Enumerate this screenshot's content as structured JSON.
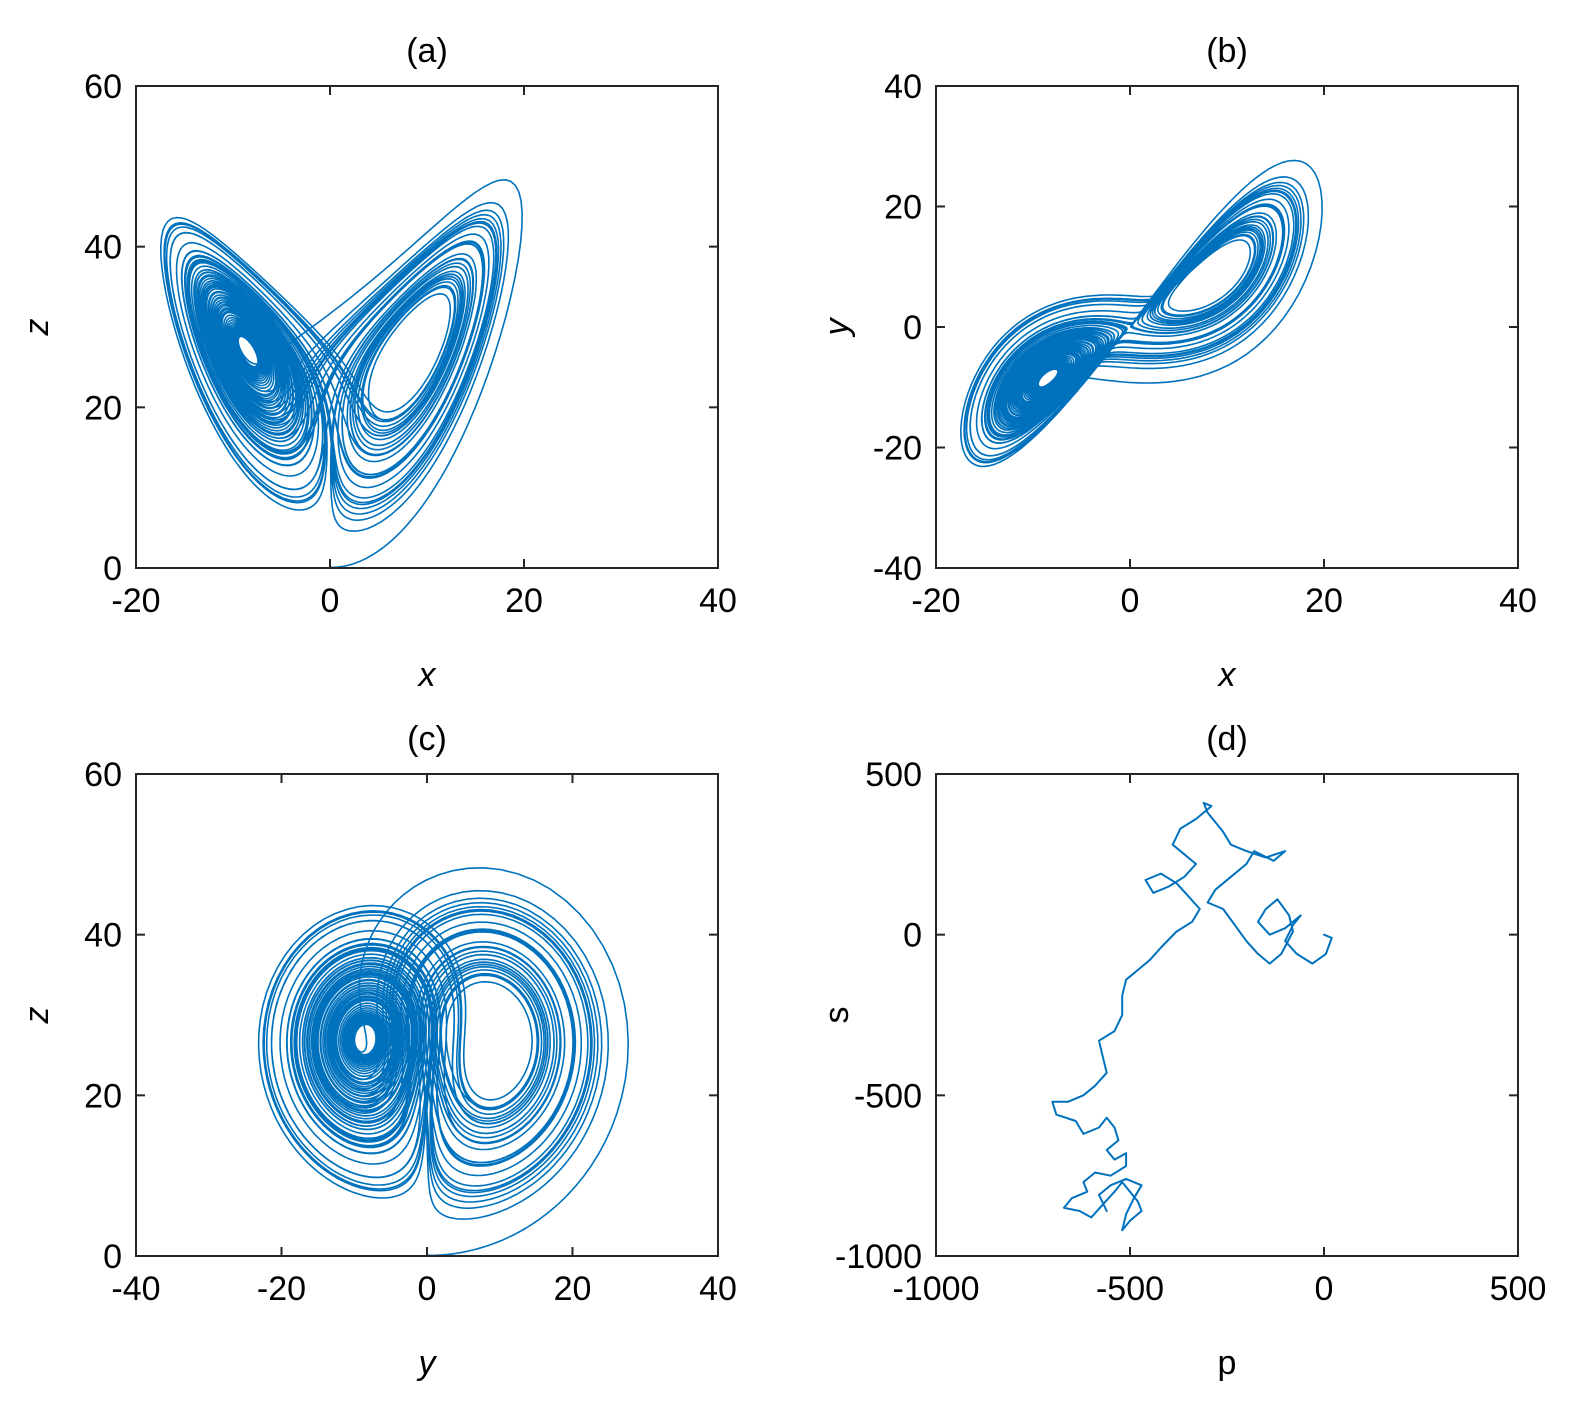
{
  "figure": {
    "background": "#ffffff",
    "line_color": "#0072bd"
  },
  "chart_data": [
    {
      "id": "a",
      "type": "line",
      "title": "(a)",
      "xlabel": "x",
      "ylabel": "z",
      "italic_labels": true,
      "xlim": [
        -20,
        40
      ],
      "ylim": [
        0,
        60
      ],
      "xticks": [
        -20,
        0,
        20,
        40
      ],
      "yticks": [
        0,
        20,
        40,
        60
      ],
      "grid": false,
      "series": [
        {
          "source": "lorenz",
          "x": "x",
          "y": "z"
        }
      ]
    },
    {
      "id": "b",
      "type": "line",
      "title": "(b)",
      "xlabel": "x",
      "ylabel": "y",
      "italic_labels": true,
      "xlim": [
        -20,
        40
      ],
      "ylim": [
        -40,
        40
      ],
      "xticks": [
        -20,
        0,
        20,
        40
      ],
      "yticks": [
        -40,
        -20,
        0,
        20,
        40
      ],
      "grid": false,
      "series": [
        {
          "source": "lorenz",
          "x": "x",
          "y": "y"
        }
      ]
    },
    {
      "id": "c",
      "type": "line",
      "title": "(c)",
      "xlabel": "y",
      "ylabel": "z",
      "italic_labels": true,
      "xlim": [
        -40,
        40
      ],
      "ylim": [
        0,
        60
      ],
      "xticks": [
        -40,
        -20,
        0,
        20,
        40
      ],
      "yticks": [
        0,
        20,
        40,
        60
      ],
      "grid": false,
      "series": [
        {
          "source": "lorenz",
          "x": "y",
          "y": "z"
        }
      ]
    },
    {
      "id": "d",
      "type": "line",
      "title": "(d)",
      "xlabel": "p",
      "ylabel": "s",
      "italic_labels": false,
      "xlim": [
        -1000,
        500
      ],
      "ylim": [
        -1000,
        500
      ],
      "xticks": [
        -1000,
        -500,
        0,
        500
      ],
      "yticks": [
        -1000,
        -500,
        0,
        500
      ],
      "grid": false,
      "series": [
        {
          "source": "points",
          "points": [
            [
              0,
              0
            ],
            [
              20,
              -10
            ],
            [
              5,
              -60
            ],
            [
              -30,
              -90
            ],
            [
              -70,
              -60
            ],
            [
              -100,
              -20
            ],
            [
              -80,
              30
            ],
            [
              -60,
              60
            ],
            [
              -100,
              20
            ],
            [
              -140,
              0
            ],
            [
              -170,
              40
            ],
            [
              -150,
              80
            ],
            [
              -120,
              110
            ],
            [
              -90,
              60
            ],
            [
              -80,
              10
            ],
            [
              -110,
              -60
            ],
            [
              -140,
              -90
            ],
            [
              -170,
              -60
            ],
            [
              -200,
              -20
            ],
            [
              -230,
              30
            ],
            [
              -260,
              80
            ],
            [
              -300,
              100
            ],
            [
              -280,
              140
            ],
            [
              -240,
              180
            ],
            [
              -200,
              220
            ],
            [
              -180,
              260
            ],
            [
              -130,
              230
            ],
            [
              -100,
              260
            ],
            [
              -150,
              240
            ],
            [
              -200,
              260
            ],
            [
              -240,
              280
            ],
            [
              -260,
              320
            ],
            [
              -300,
              380
            ],
            [
              -310,
              410
            ],
            [
              -290,
              400
            ],
            [
              -330,
              360
            ],
            [
              -370,
              330
            ],
            [
              -390,
              280
            ],
            [
              -360,
              250
            ],
            [
              -330,
              220
            ],
            [
              -360,
              180
            ],
            [
              -400,
              150
            ],
            [
              -440,
              130
            ],
            [
              -460,
              170
            ],
            [
              -420,
              190
            ],
            [
              -380,
              160
            ],
            [
              -350,
              120
            ],
            [
              -320,
              80
            ],
            [
              -340,
              40
            ],
            [
              -380,
              10
            ],
            [
              -420,
              -40
            ],
            [
              -450,
              -80
            ],
            [
              -480,
              -110
            ],
            [
              -510,
              -140
            ],
            [
              -520,
              -190
            ],
            [
              -520,
              -250
            ],
            [
              -540,
              -300
            ],
            [
              -580,
              -330
            ],
            [
              -570,
              -380
            ],
            [
              -560,
              -430
            ],
            [
              -590,
              -470
            ],
            [
              -620,
              -500
            ],
            [
              -660,
              -520
            ],
            [
              -700,
              -520
            ],
            [
              -690,
              -560
            ],
            [
              -640,
              -580
            ],
            [
              -620,
              -620
            ],
            [
              -580,
              -600
            ],
            [
              -560,
              -570
            ],
            [
              -540,
              -600
            ],
            [
              -530,
              -640
            ],
            [
              -560,
              -670
            ],
            [
              -540,
              -700
            ],
            [
              -510,
              -680
            ],
            [
              -510,
              -720
            ],
            [
              -550,
              -750
            ],
            [
              -590,
              -740
            ],
            [
              -620,
              -770
            ],
            [
              -610,
              -800
            ],
            [
              -650,
              -820
            ],
            [
              -670,
              -850
            ],
            [
              -630,
              -860
            ],
            [
              -600,
              -880
            ],
            [
              -570,
              -840
            ],
            [
              -540,
              -800
            ],
            [
              -520,
              -770
            ],
            [
              -500,
              -800
            ],
            [
              -480,
              -830
            ],
            [
              -470,
              -860
            ],
            [
              -500,
              -890
            ],
            [
              -520,
              -920
            ],
            [
              -510,
              -870
            ],
            [
              -490,
              -820
            ],
            [
              -470,
              -780
            ],
            [
              -510,
              -760
            ],
            [
              -550,
              -780
            ],
            [
              -580,
              -810
            ],
            [
              -560,
              -860
            ]
          ]
        }
      ]
    }
  ]
}
